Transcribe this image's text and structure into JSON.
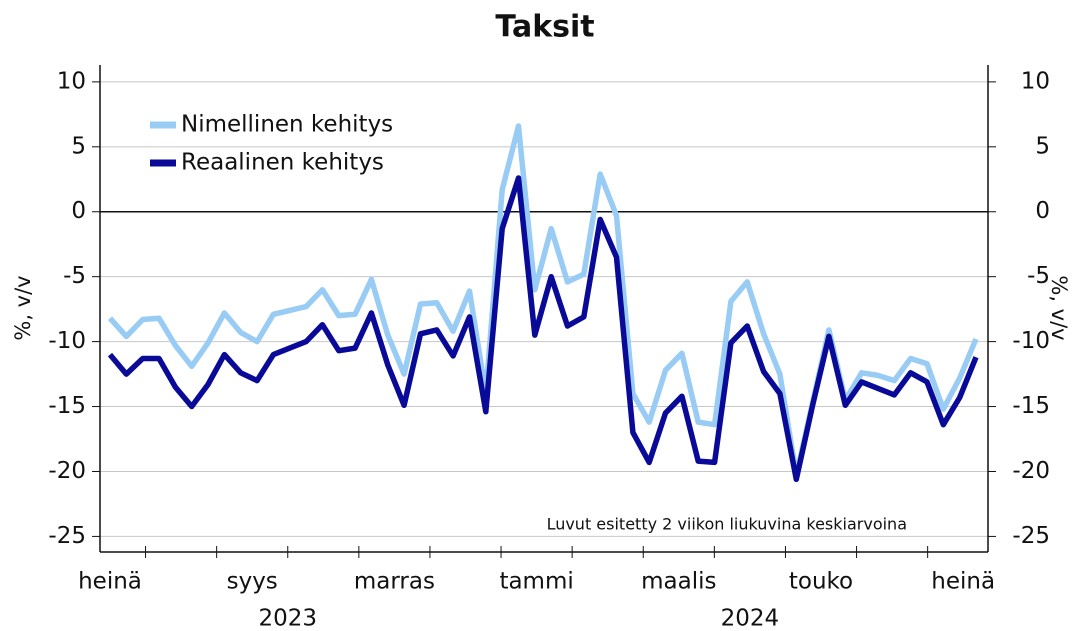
{
  "chart_data": {
    "type": "line",
    "title": "Taksit",
    "ylabel": "%, v/v",
    "y2label": "%, v/v",
    "annotation": "Luvut esitetty 2 viikon liukuvina keskiarvoina",
    "months": [
      "heinä",
      null,
      "syys",
      null,
      "marras",
      null,
      "tammi",
      null,
      "maalis",
      null,
      "touko",
      null,
      "heinä"
    ],
    "years": [
      "2023",
      "2024"
    ],
    "series": [
      {
        "name": "Nimellinen kehitys",
        "color": "#99ccf5",
        "values": [
          -8.2,
          -9.6,
          -8.3,
          -8.2,
          -10.3,
          -11.9,
          -10.1,
          -7.8,
          -9.3,
          -10.0,
          -7.9,
          -7.6,
          -7.3,
          -6.0,
          -8.0,
          -7.9,
          -5.2,
          -9.5,
          -12.5,
          -7.1,
          -7.0,
          -9.2,
          -6.1,
          -14.0,
          1.7,
          6.6,
          -6.0,
          -1.3,
          -5.4,
          -4.8,
          2.9,
          -0.3,
          -14.0,
          -16.2,
          -12.2,
          -10.9,
          -16.2,
          -16.4,
          -6.9,
          -5.4,
          -9.4,
          -12.5,
          -20.3,
          -14.7,
          -9.1,
          -14.5,
          -12.4,
          -12.6,
          -13.0,
          -11.3,
          -11.7,
          -15.2,
          -12.8,
          -9.8
        ]
      },
      {
        "name": "Reaalinen kehitys",
        "color": "#0a0a99",
        "values": [
          -11.0,
          -12.5,
          -11.3,
          -11.3,
          -13.5,
          -15.0,
          -13.3,
          -11.0,
          -12.4,
          -13.0,
          -11.0,
          -10.5,
          -10.0,
          -8.7,
          -10.7,
          -10.5,
          -7.8,
          -11.8,
          -14.9,
          -9.4,
          -9.1,
          -11.1,
          -8.1,
          -15.4,
          -1.3,
          2.6,
          -9.5,
          -5.0,
          -8.8,
          -8.1,
          -0.6,
          -3.5,
          -17.0,
          -19.3,
          -15.5,
          -14.2,
          -19.2,
          -19.3,
          -10.1,
          -8.8,
          -12.3,
          -14.0,
          -20.6,
          -14.9,
          -9.6,
          -14.9,
          -13.1,
          -13.6,
          -14.1,
          -12.4,
          -13.1,
          -16.4,
          -14.3,
          -11.2
        ]
      }
    ],
    "ylim": [
      -26.2,
      11.3
    ],
    "yticks": [
      10,
      5,
      0,
      -5,
      -10,
      -15,
      -20,
      -25
    ],
    "y2lim": [
      -26.2,
      11.3
    ],
    "y2ticks": [
      10,
      5,
      0,
      -5,
      -10,
      -15,
      -20,
      -25
    ],
    "grid": true,
    "legend": "upper left"
  }
}
